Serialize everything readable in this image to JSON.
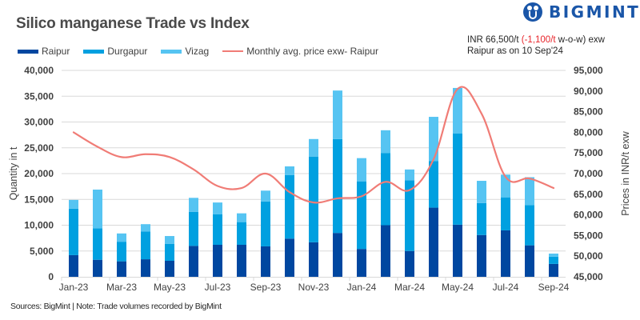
{
  "header": {
    "title": "Silico manganese Trade vs Index",
    "brand": "BIGMINT",
    "note_line1_prefix": "INR 66,500/t ",
    "note_line1_change": "(-1,100/t",
    "note_line1_suffix": " w-o-w) exw",
    "note_line2": "Raipur as on 10 Sep'24"
  },
  "footer": {
    "source": "Sources: BigMint | Note: Trade volumes recorded by BigMint"
  },
  "colors": {
    "raipur": "#0047a0",
    "durgapur": "#00a0e0",
    "vizag": "#56c4f2",
    "price_line": "#f07c76",
    "grid": "#d9d9d9",
    "brand": "#1a56a8",
    "change_negative": "#e8242a"
  },
  "chart_data": {
    "type": "bar",
    "stacked": true,
    "title": "Silico manganese Trade vs Index",
    "xlabel": "",
    "ylabel": "Quantity in t",
    "y2label": "Prices in INR/t exw",
    "ylim": [
      0,
      40000
    ],
    "y2lim": [
      45000,
      95000
    ],
    "yticks": [
      "0",
      "5,000",
      "10,000",
      "15,000",
      "20,000",
      "25,000",
      "30,000",
      "35,000",
      "40,000"
    ],
    "y2ticks": [
      "45,000",
      "50,000",
      "55,000",
      "60,000",
      "65,000",
      "70,000",
      "75,000",
      "80,000",
      "85,000",
      "90,000",
      "95,000"
    ],
    "grid": true,
    "legend_position": "top-left",
    "categories": [
      "Jan-23",
      "Feb-23",
      "Mar-23",
      "Apr-23",
      "May-23",
      "Jun-23",
      "Jul-23",
      "Aug-23",
      "Sep-23",
      "Oct-23",
      "Nov-23",
      "Dec-23",
      "Jan-24",
      "Feb-24",
      "Mar-24",
      "Apr-24",
      "May-24",
      "Jun-24",
      "Jul-24",
      "Aug-24",
      "Sep-24"
    ],
    "xtick_labels": [
      "Jan-23",
      "Mar-23",
      "May-23",
      "Jul-23",
      "Sep-23",
      "Nov-23",
      "Jan-24",
      "Mar-24",
      "May-24",
      "Jul-24",
      "Sep-24"
    ],
    "series": [
      {
        "name": "Raipur",
        "type": "bar",
        "axis": "left",
        "values": [
          4200,
          3300,
          3000,
          3400,
          3100,
          6000,
          6200,
          6200,
          5900,
          7400,
          6700,
          8500,
          5400,
          10000,
          5000,
          13400,
          10100,
          8100,
          9000,
          6100,
          2500
        ]
      },
      {
        "name": "Durgapur",
        "type": "bar",
        "axis": "left",
        "values": [
          9000,
          6100,
          3800,
          5400,
          3300,
          6600,
          5900,
          4400,
          8700,
          12300,
          16600,
          18200,
          13100,
          14000,
          13700,
          9000,
          17700,
          6200,
          6400,
          7800,
          1400
        ]
      },
      {
        "name": "Vizag",
        "type": "bar",
        "axis": "left",
        "values": [
          1700,
          7500,
          1600,
          1400,
          1500,
          2700,
          2300,
          1700,
          2100,
          1700,
          3400,
          9400,
          4500,
          4400,
          2100,
          8600,
          8800,
          4300,
          4400,
          5400,
          600
        ]
      },
      {
        "name": "Monthly avg. price exw- Raipur",
        "type": "line",
        "axis": "right",
        "values": [
          80000,
          76500,
          74000,
          74700,
          74000,
          71000,
          67000,
          66500,
          70000,
          65500,
          63000,
          64000,
          64500,
          68000,
          66000,
          73500,
          90500,
          84500,
          69200,
          68800,
          66500
        ]
      }
    ]
  }
}
